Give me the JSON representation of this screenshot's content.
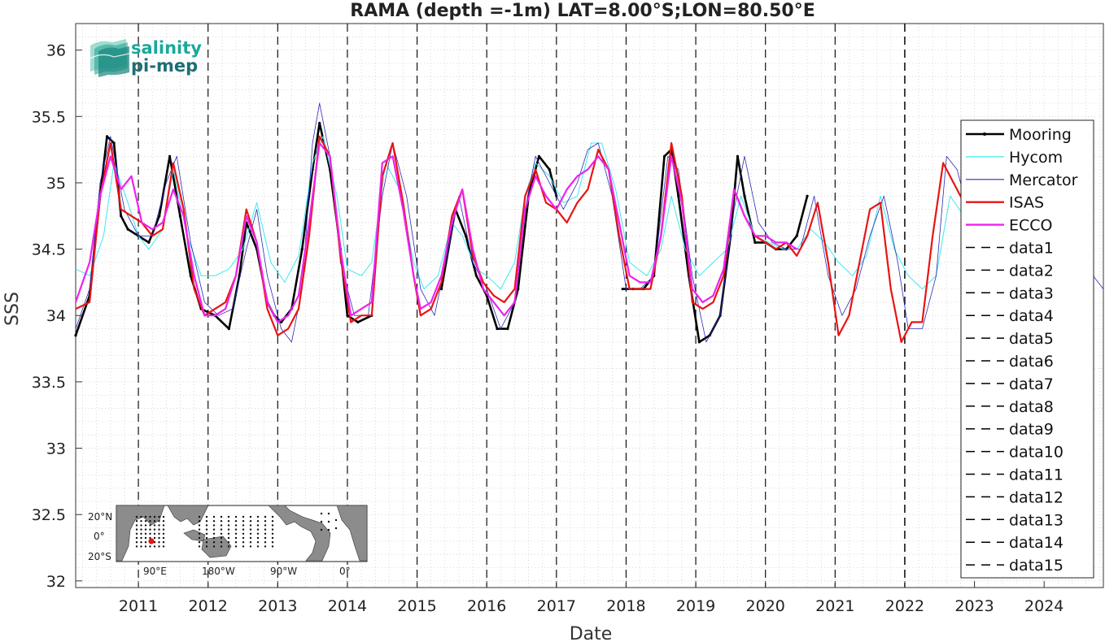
{
  "chart_data": {
    "type": "line",
    "title": "RAMA (depth =-1m) LAT=8.00°S;LON=80.50°E",
    "xlabel": "Date",
    "ylabel": "SSS",
    "xlim": [
      2010.1,
      2024.85
    ],
    "ylim": [
      31.95,
      36.2
    ],
    "x_ticks": [
      {
        "v": 2011,
        "label": "2011"
      },
      {
        "v": 2012,
        "label": "2012"
      },
      {
        "v": 2013,
        "label": "2013"
      },
      {
        "v": 2014,
        "label": "2014"
      },
      {
        "v": 2015,
        "label": "2015"
      },
      {
        "v": 2016,
        "label": "2016"
      },
      {
        "v": 2017,
        "label": "2017"
      },
      {
        "v": 2018,
        "label": "2018"
      },
      {
        "v": 2019,
        "label": "2019"
      },
      {
        "v": 2020,
        "label": "2020"
      },
      {
        "v": 2021,
        "label": "2021"
      },
      {
        "v": 2022,
        "label": "2022"
      },
      {
        "v": 2023,
        "label": "2023"
      },
      {
        "v": 2024,
        "label": "2024"
      }
    ],
    "y_ticks": [
      {
        "v": 32,
        "label": "32"
      },
      {
        "v": 32.5,
        "label": "32.5"
      },
      {
        "v": 33,
        "label": "33"
      },
      {
        "v": 33.5,
        "label": "33.5"
      },
      {
        "v": 34,
        "label": "34"
      },
      {
        "v": 34.5,
        "label": "34.5"
      },
      {
        "v": 35,
        "label": "35"
      },
      {
        "v": 35.5,
        "label": "35.5"
      },
      {
        "v": 36,
        "label": "36"
      }
    ],
    "grid": "minor-dotted",
    "legend_position": "right",
    "vlines": [
      {
        "name": "data1",
        "x": 2011.0
      },
      {
        "name": "data2",
        "x": 2012.0
      },
      {
        "name": "data3",
        "x": 2013.0
      },
      {
        "name": "data4",
        "x": 2014.0
      },
      {
        "name": "data5",
        "x": 2015.0
      },
      {
        "name": "data6",
        "x": 2016.0
      },
      {
        "name": "data7",
        "x": 2017.0
      },
      {
        "name": "data8",
        "x": 2018.0
      },
      {
        "name": "data9",
        "x": 2019.0
      },
      {
        "name": "data10",
        "x": 2020.0
      },
      {
        "name": "data11",
        "x": 2021.0
      },
      {
        "name": "data12",
        "x": 2022.0
      },
      {
        "name": "data13",
        "x": 2022.0
      },
      {
        "name": "data14",
        "x": 2022.0
      },
      {
        "name": "data15",
        "x": 2022.0
      }
    ],
    "series": [
      {
        "name": "Mooring",
        "color": "#000000",
        "width": 2.6,
        "marker": true,
        "x": [
          2010.1,
          2010.3,
          2010.45,
          2010.55,
          2010.65,
          2010.75,
          2010.85,
          2011.0,
          2011.15,
          2011.3,
          2011.45,
          2011.6,
          2011.75,
          2011.9,
          2012.1,
          2012.3,
          2012.45,
          2012.55,
          2012.7,
          2012.85,
          2012.95,
          2013.05,
          2013.2,
          2013.35,
          2013.5,
          2013.6,
          2013.75,
          2013.9,
          2014.0,
          2014.15,
          2014.35
        ],
        "y": [
          33.85,
          34.15,
          34.9,
          35.35,
          35.3,
          34.75,
          34.65,
          34.6,
          34.55,
          34.75,
          35.2,
          34.75,
          34.3,
          34.05,
          34.0,
          33.9,
          34.3,
          34.7,
          34.5,
          34.1,
          34.0,
          33.95,
          34.05,
          34.5,
          35.1,
          35.45,
          35.1,
          34.5,
          34.0,
          33.95,
          34.0
        ]
      },
      {
        "name": "Mooring",
        "color": "#000000",
        "width": 2.6,
        "marker": true,
        "x": [
          2015.35,
          2015.55,
          2015.7,
          2015.85,
          2016.0,
          2016.15,
          2016.3,
          2016.45,
          2016.6,
          2016.75,
          2016.9,
          2017.0
        ],
        "y": [
          34.2,
          34.8,
          34.6,
          34.3,
          34.15,
          33.9,
          33.9,
          34.2,
          34.9,
          35.2,
          35.1,
          34.9
        ]
      },
      {
        "name": "Mooring",
        "color": "#000000",
        "width": 2.6,
        "marker": true,
        "x": [
          2017.95,
          2018.1,
          2018.25,
          2018.4,
          2018.55,
          2018.65,
          2018.75,
          2018.9,
          2019.05,
          2019.2,
          2019.35,
          2019.5,
          2019.6,
          2019.7,
          2019.85,
          2020.0,
          2020.15,
          2020.3,
          2020.45,
          2020.6
        ],
        "y": [
          34.2,
          34.2,
          34.2,
          34.3,
          35.2,
          35.25,
          34.9,
          34.3,
          33.8,
          33.85,
          34.0,
          34.6,
          35.2,
          34.9,
          34.55,
          34.55,
          34.5,
          34.5,
          34.6,
          34.9
        ]
      },
      {
        "name": "Hycom",
        "color": "#3ee8ee",
        "width": 1.0,
        "marker": false,
        "x": [
          2010.1,
          2010.3,
          2010.5,
          2010.65,
          2010.85,
          2011.0,
          2011.15,
          2011.35,
          2011.5,
          2011.7,
          2011.9,
          2012.1,
          2012.3,
          2012.5,
          2012.7,
          2012.9,
          2013.1,
          2013.3,
          2013.5,
          2013.65,
          2013.85,
          2014.0,
          2014.2,
          2014.35,
          2014.55,
          2014.75,
          2014.95,
          2015.1,
          2015.3,
          2015.5,
          2015.65,
          2015.85,
          2016.0,
          2016.2,
          2016.4,
          2016.55,
          2016.7,
          2016.9,
          2017.1,
          2017.3,
          2017.5,
          2017.65,
          2017.85,
          2018.05,
          2018.3,
          2018.5,
          2018.65,
          2018.85,
          2019.05,
          2019.25,
          2019.45,
          2019.65,
          2019.85,
          2020.05,
          2020.25,
          2020.45,
          2020.65,
          2020.85,
          2021.05,
          2021.25,
          2021.45,
          2021.65,
          2021.85,
          2022.05,
          2022.25,
          2022.45,
          2022.65,
          2022.85
        ],
        "y": [
          34.35,
          34.3,
          34.6,
          35.15,
          34.85,
          34.6,
          34.5,
          34.65,
          35.1,
          34.6,
          34.3,
          34.3,
          34.35,
          34.5,
          34.85,
          34.4,
          34.25,
          34.45,
          35.15,
          35.35,
          34.9,
          34.35,
          34.3,
          34.4,
          35.15,
          34.95,
          34.4,
          34.2,
          34.3,
          34.7,
          34.6,
          34.35,
          34.3,
          34.2,
          34.4,
          34.9,
          35.15,
          35.05,
          34.85,
          34.9,
          35.3,
          35.3,
          34.95,
          34.4,
          34.3,
          34.5,
          34.9,
          34.5,
          34.3,
          34.4,
          34.5,
          34.9,
          34.6,
          34.55,
          34.5,
          34.5,
          34.65,
          34.55,
          34.4,
          34.3,
          34.45,
          34.9,
          34.5,
          34.3,
          34.2,
          34.3,
          34.9,
          34.75
        ]
      },
      {
        "name": "Mercator",
        "color": "#2a2ab8",
        "width": 0.8,
        "marker": false,
        "x": [
          2010.1,
          2010.3,
          2010.45,
          2010.6,
          2010.8,
          2011.0,
          2011.2,
          2011.4,
          2011.55,
          2011.75,
          2011.95,
          2012.15,
          2012.35,
          2012.55,
          2012.7,
          2012.85,
          2013.05,
          2013.2,
          2013.35,
          2013.5,
          2013.6,
          2013.75,
          2013.9,
          2014.1,
          2014.3,
          2014.5,
          2014.65,
          2014.85,
          2015.05,
          2015.25,
          2015.45,
          2015.6,
          2015.8,
          2016.0,
          2016.2,
          2016.4,
          2016.55,
          2016.7,
          2016.9,
          2017.1,
          2017.3,
          2017.45,
          2017.6,
          2017.8,
          2018.0,
          2018.2,
          2018.4,
          2018.6,
          2018.75,
          2018.95,
          2019.15,
          2019.35,
          2019.55,
          2019.7,
          2019.9,
          2020.1,
          2020.3,
          2020.5,
          2020.7,
          2020.9,
          2021.1,
          2021.3,
          2021.5,
          2021.7,
          2021.9,
          2022.05,
          2022.25,
          2022.45,
          2022.6,
          2022.75,
          2022.9,
          2023.1,
          2023.3,
          2023.5,
          2023.7,
          2023.9,
          2024.1,
          2024.3,
          2024.5,
          2024.7,
          2024.85
        ],
        "y": [
          33.9,
          34.2,
          35.0,
          35.35,
          34.8,
          34.6,
          34.6,
          35.0,
          35.2,
          34.55,
          34.1,
          34.0,
          34.05,
          34.5,
          34.8,
          34.3,
          33.9,
          33.8,
          34.2,
          35.3,
          35.6,
          35.2,
          34.4,
          34.0,
          34.0,
          34.9,
          35.3,
          34.9,
          34.2,
          34.0,
          34.5,
          34.9,
          34.4,
          34.2,
          33.9,
          34.1,
          34.8,
          35.2,
          35.0,
          34.8,
          35.0,
          35.25,
          35.3,
          34.9,
          34.2,
          34.2,
          34.3,
          35.2,
          35.1,
          34.3,
          33.8,
          34.0,
          34.8,
          35.2,
          34.7,
          34.55,
          34.5,
          34.5,
          34.9,
          34.3,
          34.0,
          34.2,
          34.6,
          34.9,
          34.4,
          33.9,
          33.9,
          34.3,
          35.2,
          35.1,
          34.8,
          34.3,
          34.1,
          34.2,
          34.6,
          34.9,
          34.5,
          34.1,
          34.0,
          34.3,
          34.2
        ]
      },
      {
        "name": "ISAS",
        "color": "#e81414",
        "width": 2.2,
        "marker": false,
        "x": [
          2010.1,
          2010.3,
          2010.45,
          2010.6,
          2010.75,
          2010.9,
          2011.05,
          2011.2,
          2011.35,
          2011.5,
          2011.65,
          2011.8,
          2011.95,
          2012.1,
          2012.25,
          2012.4,
          2012.55,
          2012.7,
          2012.85,
          2013.0,
          2013.15,
          2013.3,
          2013.45,
          2013.6,
          2013.75,
          2013.9,
          2014.05,
          2014.2,
          2014.35,
          2014.5,
          2014.65,
          2014.8,
          2014.95,
          2015.05,
          2015.2,
          2015.35,
          2015.5,
          2015.65,
          2015.8,
          2015.95,
          2016.1,
          2016.25,
          2016.4,
          2016.55,
          2016.7,
          2016.85,
          2017.0,
          2017.15,
          2017.3,
          2017.45,
          2017.6,
          2017.75,
          2017.9,
          2018.05,
          2018.2,
          2018.35,
          2018.5,
          2018.65,
          2018.8,
          2018.95,
          2019.1,
          2019.25,
          2019.4,
          2019.55,
          2019.7,
          2019.85,
          2020.0,
          2020.15,
          2020.3,
          2020.45,
          2020.6,
          2020.75,
          2020.9,
          2021.05,
          2021.2,
          2021.35,
          2021.5,
          2021.65,
          2021.8,
          2021.95,
          2022.1,
          2022.25,
          2022.4,
          2022.55,
          2022.7,
          2022.85
        ],
        "y": [
          34.05,
          34.1,
          34.9,
          35.3,
          34.8,
          34.75,
          34.7,
          34.6,
          34.65,
          35.15,
          34.8,
          34.2,
          34.0,
          34.05,
          34.1,
          34.3,
          34.8,
          34.55,
          34.05,
          33.85,
          33.9,
          34.05,
          34.6,
          35.35,
          35.2,
          34.45,
          33.95,
          34.0,
          34.0,
          35.05,
          35.3,
          34.85,
          34.3,
          34.0,
          34.05,
          34.25,
          34.75,
          34.95,
          34.45,
          34.25,
          34.15,
          34.1,
          34.2,
          34.9,
          35.1,
          34.85,
          34.8,
          34.7,
          34.85,
          34.95,
          35.25,
          35.1,
          34.6,
          34.2,
          34.2,
          34.2,
          34.6,
          35.3,
          34.9,
          34.1,
          34.05,
          34.1,
          34.3,
          34.95,
          34.75,
          34.6,
          34.55,
          34.5,
          34.55,
          34.45,
          34.6,
          34.85,
          34.4,
          33.85,
          34.0,
          34.4,
          34.8,
          34.85,
          34.2,
          33.8,
          33.95,
          33.95,
          34.6,
          35.15,
          35.0,
          34.85
        ]
      },
      {
        "name": "ECCO",
        "color": "#ee22ee",
        "width": 2.2,
        "marker": false,
        "x": [
          2010.1,
          2010.3,
          2010.45,
          2010.6,
          2010.75,
          2010.9,
          2011.05,
          2011.2,
          2011.35,
          2011.5,
          2011.65,
          2011.8,
          2011.95,
          2012.1,
          2012.25,
          2012.4,
          2012.55,
          2012.7,
          2012.85,
          2013.0,
          2013.15,
          2013.3,
          2013.45,
          2013.6,
          2013.75,
          2013.9,
          2014.05,
          2014.2,
          2014.35,
          2014.5,
          2014.65,
          2014.8,
          2014.95,
          2015.05,
          2015.2,
          2015.35,
          2015.5,
          2015.65,
          2015.8,
          2015.95,
          2016.1,
          2016.25,
          2016.4,
          2016.55,
          2016.7,
          2016.85,
          2017.0,
          2017.15,
          2017.3,
          2017.45,
          2017.6,
          2017.75,
          2017.9,
          2018.05,
          2018.2,
          2018.35,
          2018.5,
          2018.65,
          2018.8,
          2018.95,
          2019.1,
          2019.25,
          2019.4,
          2019.55,
          2019.7,
          2019.85,
          2020.0,
          2020.15,
          2020.3,
          2020.45
        ],
        "y": [
          34.1,
          34.4,
          34.9,
          35.2,
          34.95,
          35.05,
          34.7,
          34.65,
          34.7,
          34.95,
          34.75,
          34.3,
          34.0,
          34.0,
          34.05,
          34.3,
          34.75,
          34.55,
          34.1,
          33.95,
          34.0,
          34.15,
          34.7,
          35.3,
          35.2,
          34.5,
          34.0,
          34.05,
          34.1,
          35.15,
          35.2,
          34.8,
          34.3,
          34.05,
          34.1,
          34.3,
          34.7,
          34.95,
          34.5,
          34.2,
          34.1,
          34.0,
          34.1,
          34.8,
          35.05,
          34.9,
          34.8,
          34.95,
          35.05,
          35.1,
          35.2,
          35.1,
          34.7,
          34.3,
          34.25,
          34.25,
          34.6,
          35.2,
          34.85,
          34.2,
          34.1,
          34.15,
          34.35,
          34.95,
          34.75,
          34.6,
          34.6,
          34.55,
          34.55,
          34.5
        ]
      }
    ]
  },
  "legend": {
    "items": [
      {
        "label": "Mooring",
        "color": "#000000",
        "style": "solid-marker"
      },
      {
        "label": "Hycom",
        "color": "#3ee8ee",
        "style": "solid-thin"
      },
      {
        "label": "Mercator",
        "color": "#2a2ab8",
        "style": "solid-thin"
      },
      {
        "label": "ISAS",
        "color": "#e81414",
        "style": "solid-thick"
      },
      {
        "label": "ECCO",
        "color": "#ee22ee",
        "style": "solid-thick"
      },
      {
        "label": "data1",
        "color": "#000000",
        "style": "dashed"
      },
      {
        "label": "data2",
        "color": "#000000",
        "style": "dashed"
      },
      {
        "label": "data3",
        "color": "#000000",
        "style": "dashed"
      },
      {
        "label": "data4",
        "color": "#000000",
        "style": "dashed"
      },
      {
        "label": "data5",
        "color": "#000000",
        "style": "dashed"
      },
      {
        "label": "data6",
        "color": "#000000",
        "style": "dashed"
      },
      {
        "label": "data7",
        "color": "#000000",
        "style": "dashed"
      },
      {
        "label": "data8",
        "color": "#000000",
        "style": "dashed"
      },
      {
        "label": "data9",
        "color": "#000000",
        "style": "dashed"
      },
      {
        "label": "data10",
        "color": "#000000",
        "style": "dashed"
      },
      {
        "label": "data11",
        "color": "#000000",
        "style": "dashed"
      },
      {
        "label": "data12",
        "color": "#000000",
        "style": "dashed"
      },
      {
        "label": "data13",
        "color": "#000000",
        "style": "dashed"
      },
      {
        "label": "data14",
        "color": "#000000",
        "style": "dashed"
      },
      {
        "label": "data15",
        "color": "#000000",
        "style": "dashed"
      }
    ]
  },
  "logo": {
    "line1": "salinity",
    "line2": "pi-mep",
    "colors": [
      "#1aa89a",
      "#1d6e72"
    ]
  },
  "inset_map": {
    "lat_labels": [
      "20°N",
      "0°",
      "20°S"
    ],
    "lon_labels": [
      "90°E",
      "180°W",
      "90°W",
      "0°"
    ],
    "marker_color": "#e81414",
    "land_color": "#8c8c8c",
    "ocean_color": "#ffffff"
  }
}
